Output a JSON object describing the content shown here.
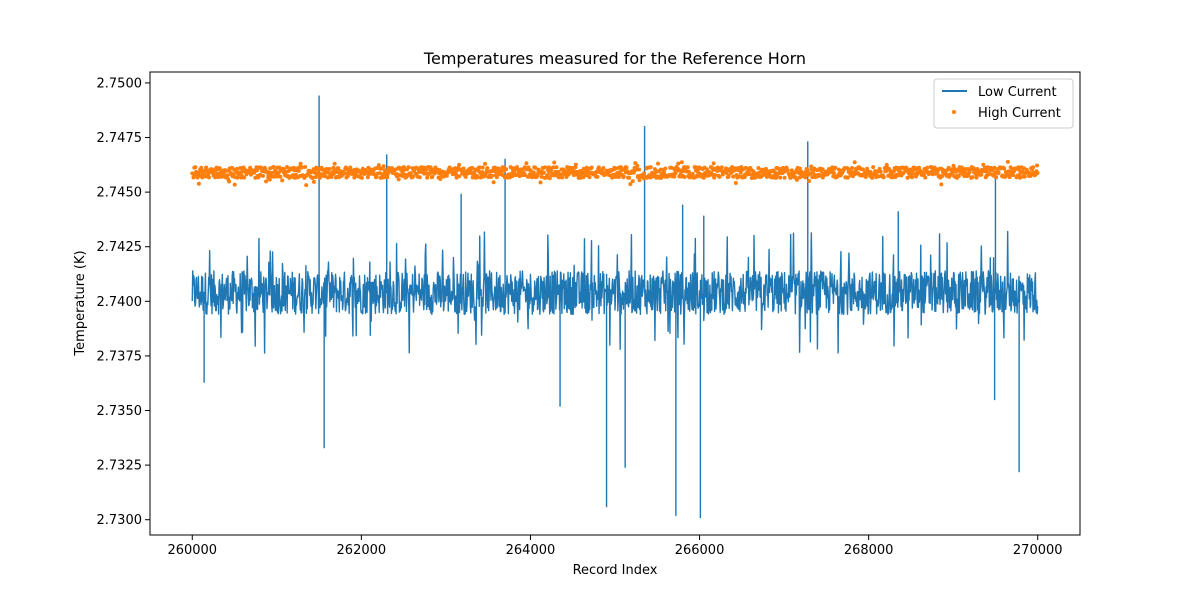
{
  "chart_data": {
    "type": "line",
    "title": "Temperatures measured for the Reference Horn",
    "xlabel": "Record Index",
    "ylabel": "Temperature (K)",
    "xlim": [
      259500,
      270500
    ],
    "ylim": [
      2.7293,
      2.7505
    ],
    "x_ticks": [
      260000,
      262000,
      264000,
      266000,
      268000,
      270000
    ],
    "x_tick_labels": [
      "260000",
      "262000",
      "264000",
      "266000",
      "268000",
      "270000"
    ],
    "y_ticks": [
      2.73,
      2.7325,
      2.735,
      2.7375,
      2.74,
      2.7425,
      2.745,
      2.7475,
      2.75
    ],
    "y_tick_labels": [
      "2.7300",
      "2.7325",
      "2.7350",
      "2.7375",
      "2.7400",
      "2.7425",
      "2.7450",
      "2.7475",
      "2.7500"
    ],
    "legend_position": "top-right",
    "series": [
      {
        "name": "Low Current",
        "kind": "line",
        "color": "#1f77b4",
        "x_range": [
          260000,
          270000
        ],
        "band": [
          2.7394,
          2.7414
        ],
        "center": 2.7404,
        "spikes": [
          {
            "x": 261500,
            "y": 2.7494
          },
          {
            "x": 262300,
            "y": 2.7467
          },
          {
            "x": 263700,
            "y": 2.7465
          },
          {
            "x": 265350,
            "y": 2.748
          },
          {
            "x": 267280,
            "y": 2.7473
          },
          {
            "x": 263180,
            "y": 2.7449
          },
          {
            "x": 265800,
            "y": 2.7444
          },
          {
            "x": 266050,
            "y": 2.7439
          },
          {
            "x": 269500,
            "y": 2.7456
          },
          {
            "x": 268350,
            "y": 2.7441
          },
          {
            "x": 261560,
            "y": 2.7333
          },
          {
            "x": 264900,
            "y": 2.7306
          },
          {
            "x": 265720,
            "y": 2.7302
          },
          {
            "x": 266010,
            "y": 2.7301
          },
          {
            "x": 269780,
            "y": 2.7322
          },
          {
            "x": 265120,
            "y": 2.7324
          },
          {
            "x": 264350,
            "y": 2.7352
          },
          {
            "x": 269490,
            "y": 2.7355
          },
          {
            "x": 260140,
            "y": 2.7363
          }
        ]
      },
      {
        "name": "High Current",
        "kind": "scatter",
        "color": "#ff7f0e",
        "x_range": [
          260000,
          270000
        ],
        "center": 2.7459,
        "spread": [
          2.7453,
          2.7464
        ]
      }
    ]
  }
}
